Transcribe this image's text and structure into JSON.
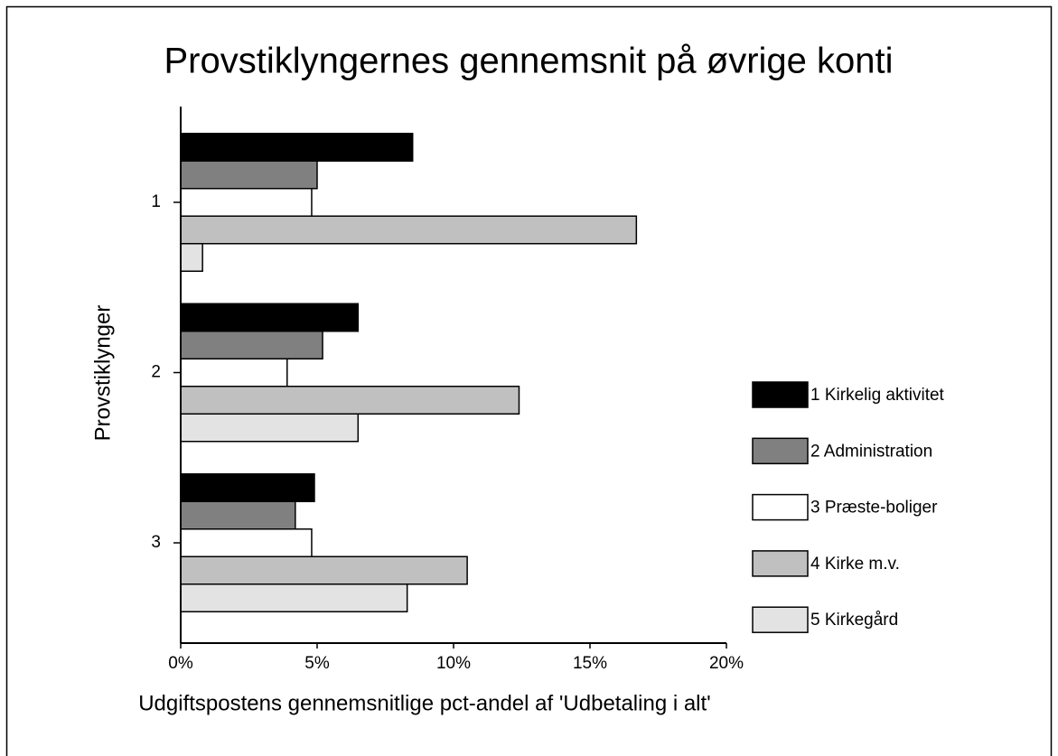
{
  "chart_data": {
    "type": "barh",
    "title": "Provstiklyngernes gennemsnit på øvrige konti",
    "xlabel": "Udgiftspostens gennemsnitlige pct-andel af 'Udbetaling i alt'",
    "ylabel": "Provstiklynger",
    "categories": [
      "1",
      "2",
      "3"
    ],
    "series": [
      {
        "name": "1 Kirkelig aktivitet",
        "color": "#000000",
        "values": [
          8.5,
          6.5,
          4.9
        ]
      },
      {
        "name": "2 Administration",
        "color": "#808080",
        "values": [
          5.0,
          5.2,
          4.2
        ]
      },
      {
        "name": "3 Præste-boliger",
        "color": "#ffffff",
        "values": [
          4.8,
          3.9,
          4.8
        ]
      },
      {
        "name": "4 Kirke m.v.",
        "color": "#c0c0c0",
        "values": [
          16.7,
          12.4,
          10.5
        ]
      },
      {
        "name": "5 Kirkegård",
        "color": "#e3e3e3",
        "values": [
          0.8,
          6.5,
          8.3
        ]
      }
    ],
    "xlim": [
      0,
      20
    ],
    "xticks": [
      {
        "value": 0,
        "label": "0%"
      },
      {
        "value": 5,
        "label": "5%"
      },
      {
        "value": 10,
        "label": "10%"
      },
      {
        "value": 15,
        "label": "15%"
      },
      {
        "value": 20,
        "label": "20%"
      }
    ],
    "legend": "right",
    "grid": false
  }
}
